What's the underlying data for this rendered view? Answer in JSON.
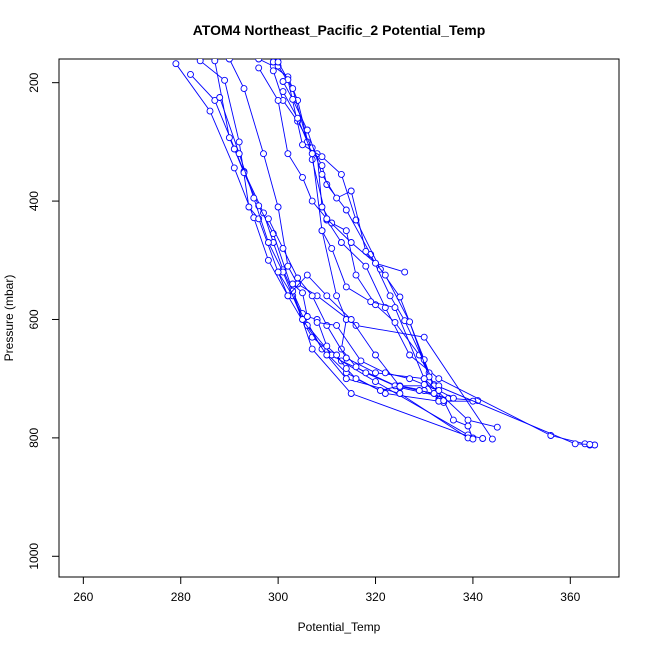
{
  "chart_data": {
    "type": "line",
    "title": "ATOM4 Northeast_Pacific_2 Potential_Temp",
    "xlabel": "Potential_Temp",
    "ylabel": "Pressure (mbar)",
    "xlim": [
      255,
      370
    ],
    "ylim": [
      1035,
      160
    ],
    "y_reversed": true,
    "x_ticks": [
      260,
      280,
      300,
      320,
      340,
      360
    ],
    "y_ticks": [
      200,
      400,
      600,
      800,
      1000
    ],
    "grid": false,
    "marker": "open-circle",
    "line_color": "#0000ff",
    "series": [
      {
        "x": [
          279,
          286,
          291,
          295,
          298,
          302,
          307,
          313,
          325,
          335,
          341
        ],
        "y": [
          168,
          248,
          344,
          428,
          500,
          560,
          630,
          670,
          715,
          733,
          737
        ]
      },
      {
        "x": [
          282,
          287,
          293,
          297,
          299,
          301,
          305,
          309,
          314,
          322,
          333,
          340
        ],
        "y": [
          186,
          230,
          350,
          420,
          470,
          516,
          590,
          650,
          690,
          725,
          738,
          738
        ]
      },
      {
        "x": [
          284,
          289,
          292,
          294,
          296,
          300,
          303,
          306,
          311,
          320,
          339,
          342
        ],
        "y": [
          163,
          196,
          300,
          410,
          430,
          520,
          560,
          610,
          660,
          705,
          795,
          801
        ]
      },
      {
        "x": [
          287,
          290,
          291,
          293,
          296,
          299,
          303,
          307,
          315,
          340
        ],
        "y": [
          163,
          293,
          312,
          352,
          408,
          455,
          552,
          650,
          725,
          800
        ]
      },
      {
        "x": [
          288,
          292,
          295,
          298,
          301,
          305,
          310,
          314,
          325,
          339
        ],
        "y": [
          225,
          320,
          395,
          470,
          520,
          600,
          660,
          700,
          725,
          800
        ]
      },
      {
        "x": [
          290,
          293,
          297,
          300,
          302,
          304,
          308,
          316,
          330,
          344
        ],
        "y": [
          160,
          210,
          320,
          410,
          510,
          540,
          560,
          610,
          630,
          802
        ]
      },
      {
        "x": [
          296,
          299,
          302,
          304,
          307,
          310,
          313,
          318,
          322,
          327,
          333,
          356,
          363,
          364,
          365
        ],
        "y": [
          160,
          172,
          190,
          230,
          330,
          432,
          470,
          510,
          580,
          660,
          700,
          796,
          810,
          812,
          812
        ]
      },
      {
        "x": [
          299,
          300,
          303,
          306,
          308,
          309,
          311,
          314,
          316,
          320,
          324,
          329,
          332,
          361,
          364
        ],
        "y": [
          165,
          172,
          210,
          300,
          320,
          410,
          437,
          450,
          525,
          575,
          605,
          660,
          710,
          810,
          811
        ]
      },
      {
        "x": [
          299,
          301,
          304,
          307,
          309,
          310,
          314,
          319,
          323,
          326,
          331
        ],
        "y": [
          180,
          230,
          265,
          310,
          340,
          372,
          415,
          490,
          560,
          602,
          690
        ]
      },
      {
        "x": [
          300,
          302,
          305,
          309,
          313,
          316,
          321,
          325,
          330,
          333
        ],
        "y": [
          165,
          195,
          305,
          325,
          355,
          432,
          515,
          562,
          668,
          735
        ]
      },
      {
        "x": [
          301,
          303,
          306,
          309,
          312,
          315,
          318,
          322,
          327,
          331,
          334
        ],
        "y": [
          198,
          228,
          280,
          355,
          395,
          383,
          485,
          525,
          604,
          697,
          740
        ]
      },
      {
        "x": [
          301,
          304,
          307,
          309,
          311,
          314,
          319,
          324,
          330,
          333
        ],
        "y": [
          215,
          260,
          320,
          450,
          480,
          545,
          570,
          580,
          700,
          738
        ]
      },
      {
        "x": [
          296,
          300,
          302,
          305,
          307,
          310,
          315,
          320,
          326
        ],
        "y": [
          175,
          230,
          320,
          360,
          400,
          430,
          470,
          505,
          520
        ]
      },
      {
        "x": [
          309,
          312,
          314,
          313,
          316,
          318,
          324,
          332,
          333
        ],
        "y": [
          450,
          560,
          600,
          650,
          680,
          690,
          712,
          712,
          712
        ]
      },
      {
        "x": [
          303,
          305,
          306,
          308,
          310,
          312,
          314,
          316,
          321,
          325,
          330,
          334,
          336,
          339,
          340
        ],
        "y": [
          540,
          555,
          595,
          600,
          645,
          660,
          683,
          700,
          720,
          712,
          720,
          737,
          770,
          780,
          802
        ]
      },
      {
        "x": [
          298,
          301,
          304,
          307,
          310,
          314,
          320,
          330,
          339,
          345
        ],
        "y": [
          430,
          480,
          530,
          560,
          610,
          665,
          690,
          700,
          770,
          782
        ]
      },
      {
        "x": [
          308,
          312,
          317,
          322,
          327,
          330,
          333,
          336
        ],
        "y": [
          605,
          610,
          670,
          690,
          700,
          710,
          720,
          733
        ]
      },
      {
        "x": [
          300,
          302,
          306,
          310,
          315,
          320,
          325,
          329,
          332
        ],
        "y": [
          520,
          560,
          525,
          560,
          600,
          660,
          713,
          720,
          725
        ]
      }
    ]
  }
}
